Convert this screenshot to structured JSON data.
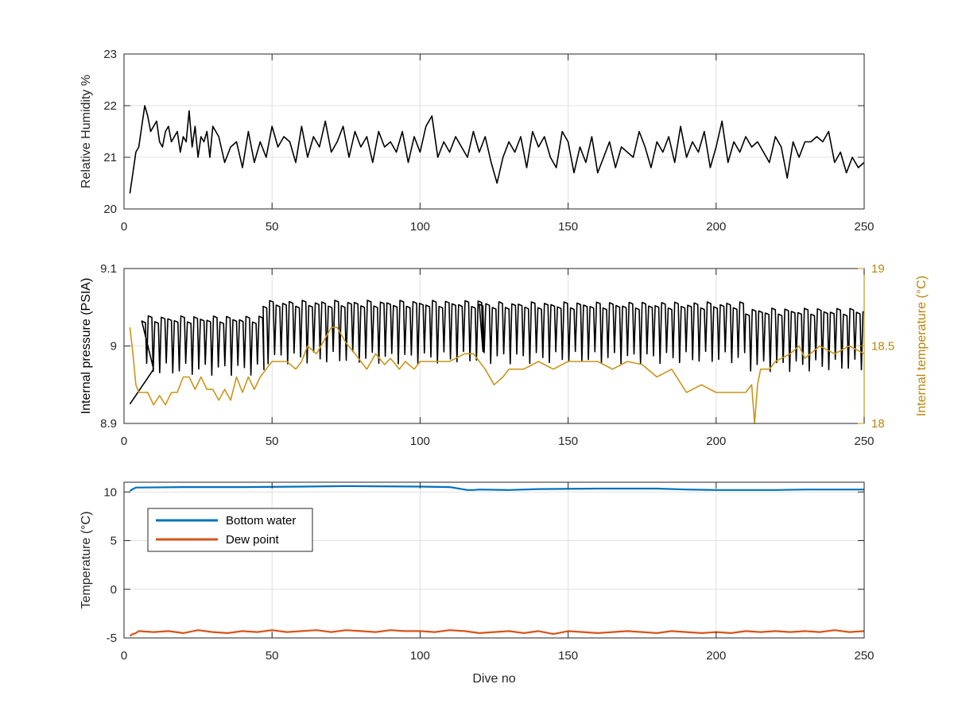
{
  "chart_data": [
    {
      "type": "line",
      "title": "",
      "xlabel": "",
      "ylabel": "Relative Humidity %",
      "xlim": [
        0,
        250
      ],
      "ylim": [
        20,
        23
      ],
      "xticks": [
        0,
        50,
        100,
        150,
        200,
        250
      ],
      "yticks": [
        20,
        21,
        22,
        23
      ],
      "grid": true,
      "series": [
        {
          "color": "#000000",
          "x": [
            2,
            3,
            4,
            5,
            6,
            7,
            8,
            9,
            10,
            11,
            12,
            13,
            14,
            15,
            16,
            17,
            18,
            19,
            20,
            21,
            22,
            23,
            24,
            25,
            26,
            27,
            28,
            29,
            30,
            32,
            34,
            36,
            38,
            40,
            42,
            44,
            46,
            48,
            50,
            52,
            54,
            56,
            58,
            60,
            62,
            64,
            66,
            68,
            70,
            72,
            74,
            76,
            78,
            80,
            82,
            84,
            86,
            88,
            90,
            92,
            94,
            96,
            98,
            100,
            102,
            104,
            106,
            108,
            110,
            112,
            114,
            116,
            118,
            120,
            122,
            124,
            126,
            128,
            130,
            132,
            134,
            136,
            138,
            140,
            142,
            144,
            146,
            148,
            150,
            152,
            154,
            156,
            158,
            160,
            162,
            164,
            166,
            168,
            170,
            172,
            174,
            176,
            178,
            180,
            182,
            184,
            186,
            188,
            190,
            192,
            194,
            196,
            198,
            200,
            202,
            204,
            206,
            208,
            210,
            212,
            214,
            216,
            218,
            220,
            222,
            224,
            226,
            228,
            230,
            232,
            234,
            236,
            238,
            240,
            242,
            244,
            246,
            248,
            250
          ],
          "y": [
            20.3,
            20.7,
            21.1,
            21.2,
            21.6,
            22.0,
            21.8,
            21.5,
            21.6,
            21.7,
            21.3,
            21.2,
            21.5,
            21.6,
            21.3,
            21.4,
            21.5,
            21.1,
            21.4,
            21.3,
            21.9,
            21.2,
            21.6,
            21.0,
            21.4,
            21.3,
            21.5,
            21.0,
            21.6,
            21.4,
            20.9,
            21.2,
            21.3,
            20.8,
            21.5,
            20.9,
            21.3,
            21.0,
            21.6,
            21.2,
            21.4,
            21.3,
            20.9,
            21.6,
            21.0,
            21.4,
            21.2,
            21.7,
            21.1,
            21.3,
            21.6,
            21.0,
            21.5,
            21.2,
            21.4,
            20.9,
            21.5,
            21.2,
            21.3,
            21.1,
            21.5,
            20.9,
            21.4,
            21.1,
            21.6,
            21.8,
            21.0,
            21.3,
            21.1,
            21.4,
            21.2,
            21.0,
            21.5,
            21.1,
            21.4,
            20.9,
            20.5,
            21.0,
            21.3,
            21.1,
            21.4,
            20.8,
            21.5,
            21.2,
            21.4,
            21.0,
            20.8,
            21.5,
            21.3,
            20.7,
            21.2,
            20.9,
            21.4,
            20.7,
            21.0,
            21.3,
            20.8,
            21.2,
            21.1,
            21.0,
            21.5,
            21.2,
            20.8,
            21.3,
            21.1,
            21.4,
            20.9,
            21.6,
            21.0,
            21.3,
            21.1,
            21.5,
            20.8,
            21.2,
            21.7,
            20.9,
            21.3,
            21.1,
            21.4,
            21.2,
            21.3,
            21.1,
            20.9,
            21.4,
            21.2,
            20.6,
            21.3,
            21.0,
            21.3,
            21.3,
            21.4,
            21.3,
            21.5,
            20.9,
            21.1,
            20.7,
            21.0,
            20.8,
            20.9
          ],
          "name": ""
        }
      ]
    },
    {
      "type": "line",
      "title": "",
      "xlabel": "",
      "ylabel": "Internal pressure (PSIA)",
      "ylabel_right": "Internal temperature (°C)",
      "xlim": [
        0,
        250
      ],
      "ylim": [
        8.9,
        9.1
      ],
      "ylim_right": [
        18,
        19
      ],
      "xticks": [
        0,
        50,
        100,
        150,
        200,
        250
      ],
      "yticks": [
        8.9,
        9,
        9.1
      ],
      "yticks_right": [
        18,
        18.5,
        19
      ],
      "grid": true,
      "series": [
        {
          "color": "#000000",
          "axis": "left",
          "pattern": "rapid oscillation between upper and lower levels",
          "segments": [
            {
              "x_start": 2,
              "x_end": 10,
              "upper": 8.925,
              "lower": 8.925
            },
            {
              "x_start": 6,
              "x_end": 47,
              "upper": 9.035,
              "lower": 8.97
            },
            {
              "x_start": 47,
              "x_end": 120,
              "upper": 9.055,
              "lower": 8.985
            },
            {
              "x_start": 120,
              "x_end": 210,
              "upper": 9.053,
              "lower": 8.985
            },
            {
              "x_start": 210,
              "x_end": 250,
              "upper": 9.045,
              "lower": 8.975
            }
          ],
          "name": ""
        },
        {
          "color": "#c9961a",
          "axis": "right",
          "x": [
            2,
            3,
            4,
            5,
            8,
            10,
            12,
            14,
            16,
            18,
            20,
            22,
            24,
            26,
            28,
            30,
            32,
            34,
            36,
            38,
            40,
            42,
            44,
            46,
            48,
            50,
            55,
            58,
            60,
            62,
            65,
            68,
            70,
            72,
            75,
            78,
            80,
            82,
            85,
            88,
            90,
            93,
            95,
            98,
            100,
            105,
            110,
            115,
            118,
            120,
            122,
            125,
            128,
            130,
            135,
            140,
            145,
            150,
            155,
            160,
            165,
            170,
            175,
            180,
            185,
            190,
            195,
            200,
            205,
            210,
            212,
            213,
            214,
            215,
            218,
            220,
            225,
            228,
            230,
            235,
            240,
            245,
            250
          ],
          "y": [
            18.62,
            18.45,
            18.25,
            18.2,
            18.2,
            18.12,
            18.18,
            18.12,
            18.2,
            18.2,
            18.3,
            18.3,
            18.22,
            18.3,
            18.22,
            18.22,
            18.15,
            18.22,
            18.15,
            18.3,
            18.2,
            18.3,
            18.22,
            18.3,
            18.35,
            18.4,
            18.4,
            18.35,
            18.4,
            18.5,
            18.45,
            18.55,
            18.62,
            18.62,
            18.52,
            18.45,
            18.4,
            18.35,
            18.45,
            18.38,
            18.42,
            18.35,
            18.4,
            18.35,
            18.4,
            18.4,
            18.4,
            18.45,
            18.45,
            18.4,
            18.35,
            18.25,
            18.3,
            18.35,
            18.35,
            18.4,
            18.35,
            18.4,
            18.4,
            18.4,
            18.35,
            18.4,
            18.38,
            18.3,
            18.35,
            18.2,
            18.25,
            18.2,
            18.2,
            18.2,
            18.25,
            18.0,
            18.25,
            18.35,
            18.35,
            18.4,
            18.45,
            18.5,
            18.42,
            18.5,
            18.45,
            18.5,
            18.45
          ],
          "name": ""
        }
      ]
    },
    {
      "type": "line",
      "title": "",
      "xlabel": "Dive no",
      "ylabel": "Temperature (°C)",
      "xlim": [
        0,
        250
      ],
      "ylim": [
        -5,
        11
      ],
      "xticks": [
        0,
        50,
        100,
        150,
        200,
        250
      ],
      "yticks": [
        -5,
        0,
        5,
        10
      ],
      "grid": true,
      "legend": {
        "placement": "upper-left",
        "entries": [
          "Bottom water",
          "Dew point"
        ]
      },
      "series": [
        {
          "name": "Bottom water",
          "color": "#0072bd",
          "x": [
            2,
            3,
            4,
            5,
            20,
            40,
            60,
            75,
            100,
            110,
            116,
            118,
            120,
            130,
            140,
            160,
            180,
            190,
            200,
            220,
            230,
            240,
            250
          ],
          "y": [
            10.1,
            10.3,
            10.45,
            10.45,
            10.5,
            10.5,
            10.55,
            10.6,
            10.55,
            10.5,
            10.2,
            10.2,
            10.25,
            10.2,
            10.3,
            10.35,
            10.35,
            10.25,
            10.2,
            10.2,
            10.25,
            10.25,
            10.25
          ]
        },
        {
          "name": "Dew point",
          "color": "#d95319",
          "x": [
            2,
            3,
            4,
            5,
            10,
            15,
            20,
            25,
            30,
            35,
            40,
            45,
            50,
            55,
            60,
            65,
            70,
            75,
            80,
            85,
            90,
            95,
            100,
            105,
            110,
            115,
            120,
            125,
            130,
            135,
            140,
            145,
            150,
            155,
            160,
            165,
            170,
            175,
            180,
            185,
            190,
            195,
            200,
            205,
            210,
            215,
            220,
            225,
            230,
            235,
            240,
            245,
            250
          ],
          "y": [
            -4.8,
            -4.6,
            -4.5,
            -4.3,
            -4.4,
            -4.3,
            -4.5,
            -4.2,
            -4.4,
            -4.5,
            -4.3,
            -4.4,
            -4.2,
            -4.4,
            -4.3,
            -4.2,
            -4.4,
            -4.2,
            -4.3,
            -4.4,
            -4.2,
            -4.3,
            -4.3,
            -4.4,
            -4.2,
            -4.3,
            -4.5,
            -4.4,
            -4.3,
            -4.5,
            -4.3,
            -4.6,
            -4.3,
            -4.4,
            -4.5,
            -4.4,
            -4.3,
            -4.4,
            -4.5,
            -4.3,
            -4.4,
            -4.5,
            -4.4,
            -4.5,
            -4.3,
            -4.4,
            -4.3,
            -4.4,
            -4.3,
            -4.4,
            -4.2,
            -4.4,
            -4.3
          ]
        }
      ]
    }
  ]
}
